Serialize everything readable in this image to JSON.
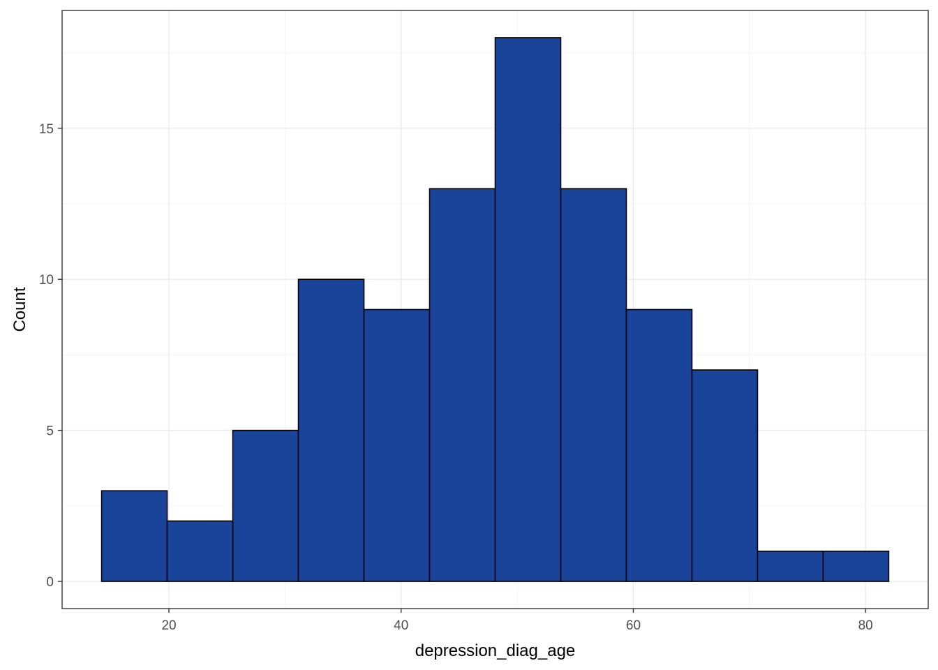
{
  "chart_data": {
    "type": "bar",
    "subtype": "histogram",
    "title": "",
    "xlabel": "depression_diag_age",
    "ylabel": "Count",
    "bins": [
      {
        "x0": 14.2,
        "x1": 19.85,
        "count": 3
      },
      {
        "x0": 19.85,
        "x1": 25.5,
        "count": 2
      },
      {
        "x0": 25.5,
        "x1": 31.15,
        "count": 5
      },
      {
        "x0": 31.15,
        "x1": 36.8,
        "count": 10
      },
      {
        "x0": 36.8,
        "x1": 42.45,
        "count": 9
      },
      {
        "x0": 42.45,
        "x1": 48.1,
        "count": 13
      },
      {
        "x0": 48.1,
        "x1": 53.75,
        "count": 18
      },
      {
        "x0": 53.75,
        "x1": 59.4,
        "count": 13
      },
      {
        "x0": 59.4,
        "x1": 65.05,
        "count": 9
      },
      {
        "x0": 65.05,
        "x1": 70.7,
        "count": 7
      },
      {
        "x0": 70.7,
        "x1": 76.35,
        "count": 1
      },
      {
        "x0": 76.35,
        "x1": 82.0,
        "count": 1
      }
    ],
    "xticks": [
      "20",
      "40",
      "60",
      "80"
    ],
    "yticks": [
      "0",
      "5",
      "10",
      "15"
    ],
    "xlim": [
      10.8,
      85.4
    ],
    "ylim": [
      -0.9,
      18.9
    ],
    "grid": true,
    "bar_color": "#1a4499",
    "bar_edge_color": "#000000"
  }
}
